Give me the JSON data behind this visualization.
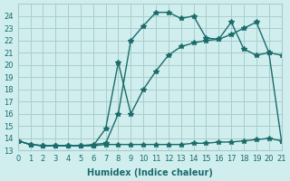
{
  "xlabel": "Humidex (Indice chaleur)",
  "xlim": [
    0,
    21
  ],
  "ylim": [
    13,
    25
  ],
  "yticks": [
    13,
    14,
    15,
    16,
    17,
    18,
    19,
    20,
    21,
    22,
    23,
    24
  ],
  "xticks": [
    0,
    1,
    2,
    3,
    4,
    5,
    6,
    7,
    8,
    9,
    10,
    11,
    12,
    13,
    14,
    15,
    16,
    17,
    18,
    19,
    20,
    21
  ],
  "bg_color": "#d0eeee",
  "grid_color": "#aacccc",
  "line_color": "#1a6b6b",
  "line1_x": [
    0,
    1,
    2,
    3,
    4,
    5,
    6,
    7,
    8,
    9,
    10,
    11,
    12,
    13,
    14,
    15,
    16,
    17,
    18,
    19,
    20,
    21
  ],
  "line1_y": [
    13.8,
    13.5,
    13.4,
    13.4,
    13.4,
    13.4,
    13.4,
    13.5,
    13.5,
    13.5,
    13.5,
    13.5,
    13.5,
    13.5,
    13.6,
    13.6,
    13.7,
    13.7,
    13.8,
    13.9,
    14.0,
    13.8
  ],
  "line2_x": [
    0,
    1,
    2,
    3,
    4,
    5,
    6,
    7,
    8,
    9,
    10,
    11,
    12,
    13,
    14,
    15,
    16,
    17,
    18,
    19,
    20,
    21
  ],
  "line2_y": [
    13.8,
    13.5,
    13.4,
    13.4,
    13.4,
    13.4,
    13.5,
    13.6,
    16.0,
    22.0,
    23.2,
    24.3,
    24.3,
    23.8,
    24.0,
    22.2,
    22.1,
    23.5,
    21.3,
    20.8,
    21.0,
    20.8
  ],
  "line3_x": [
    0,
    1,
    2,
    3,
    4,
    5,
    6,
    7,
    8,
    9,
    10,
    11,
    12,
    13,
    14,
    15,
    16,
    17,
    18,
    19,
    20,
    21
  ],
  "line3_y": [
    13.8,
    13.5,
    13.4,
    13.4,
    13.4,
    13.4,
    13.4,
    14.8,
    20.2,
    16.0,
    18.0,
    19.5,
    20.8,
    21.5,
    21.8,
    22.0,
    22.1,
    22.5,
    23.0,
    23.5,
    21.0,
    13.8
  ],
  "marker": "*",
  "markersize": 4,
  "linewidth": 1.0
}
